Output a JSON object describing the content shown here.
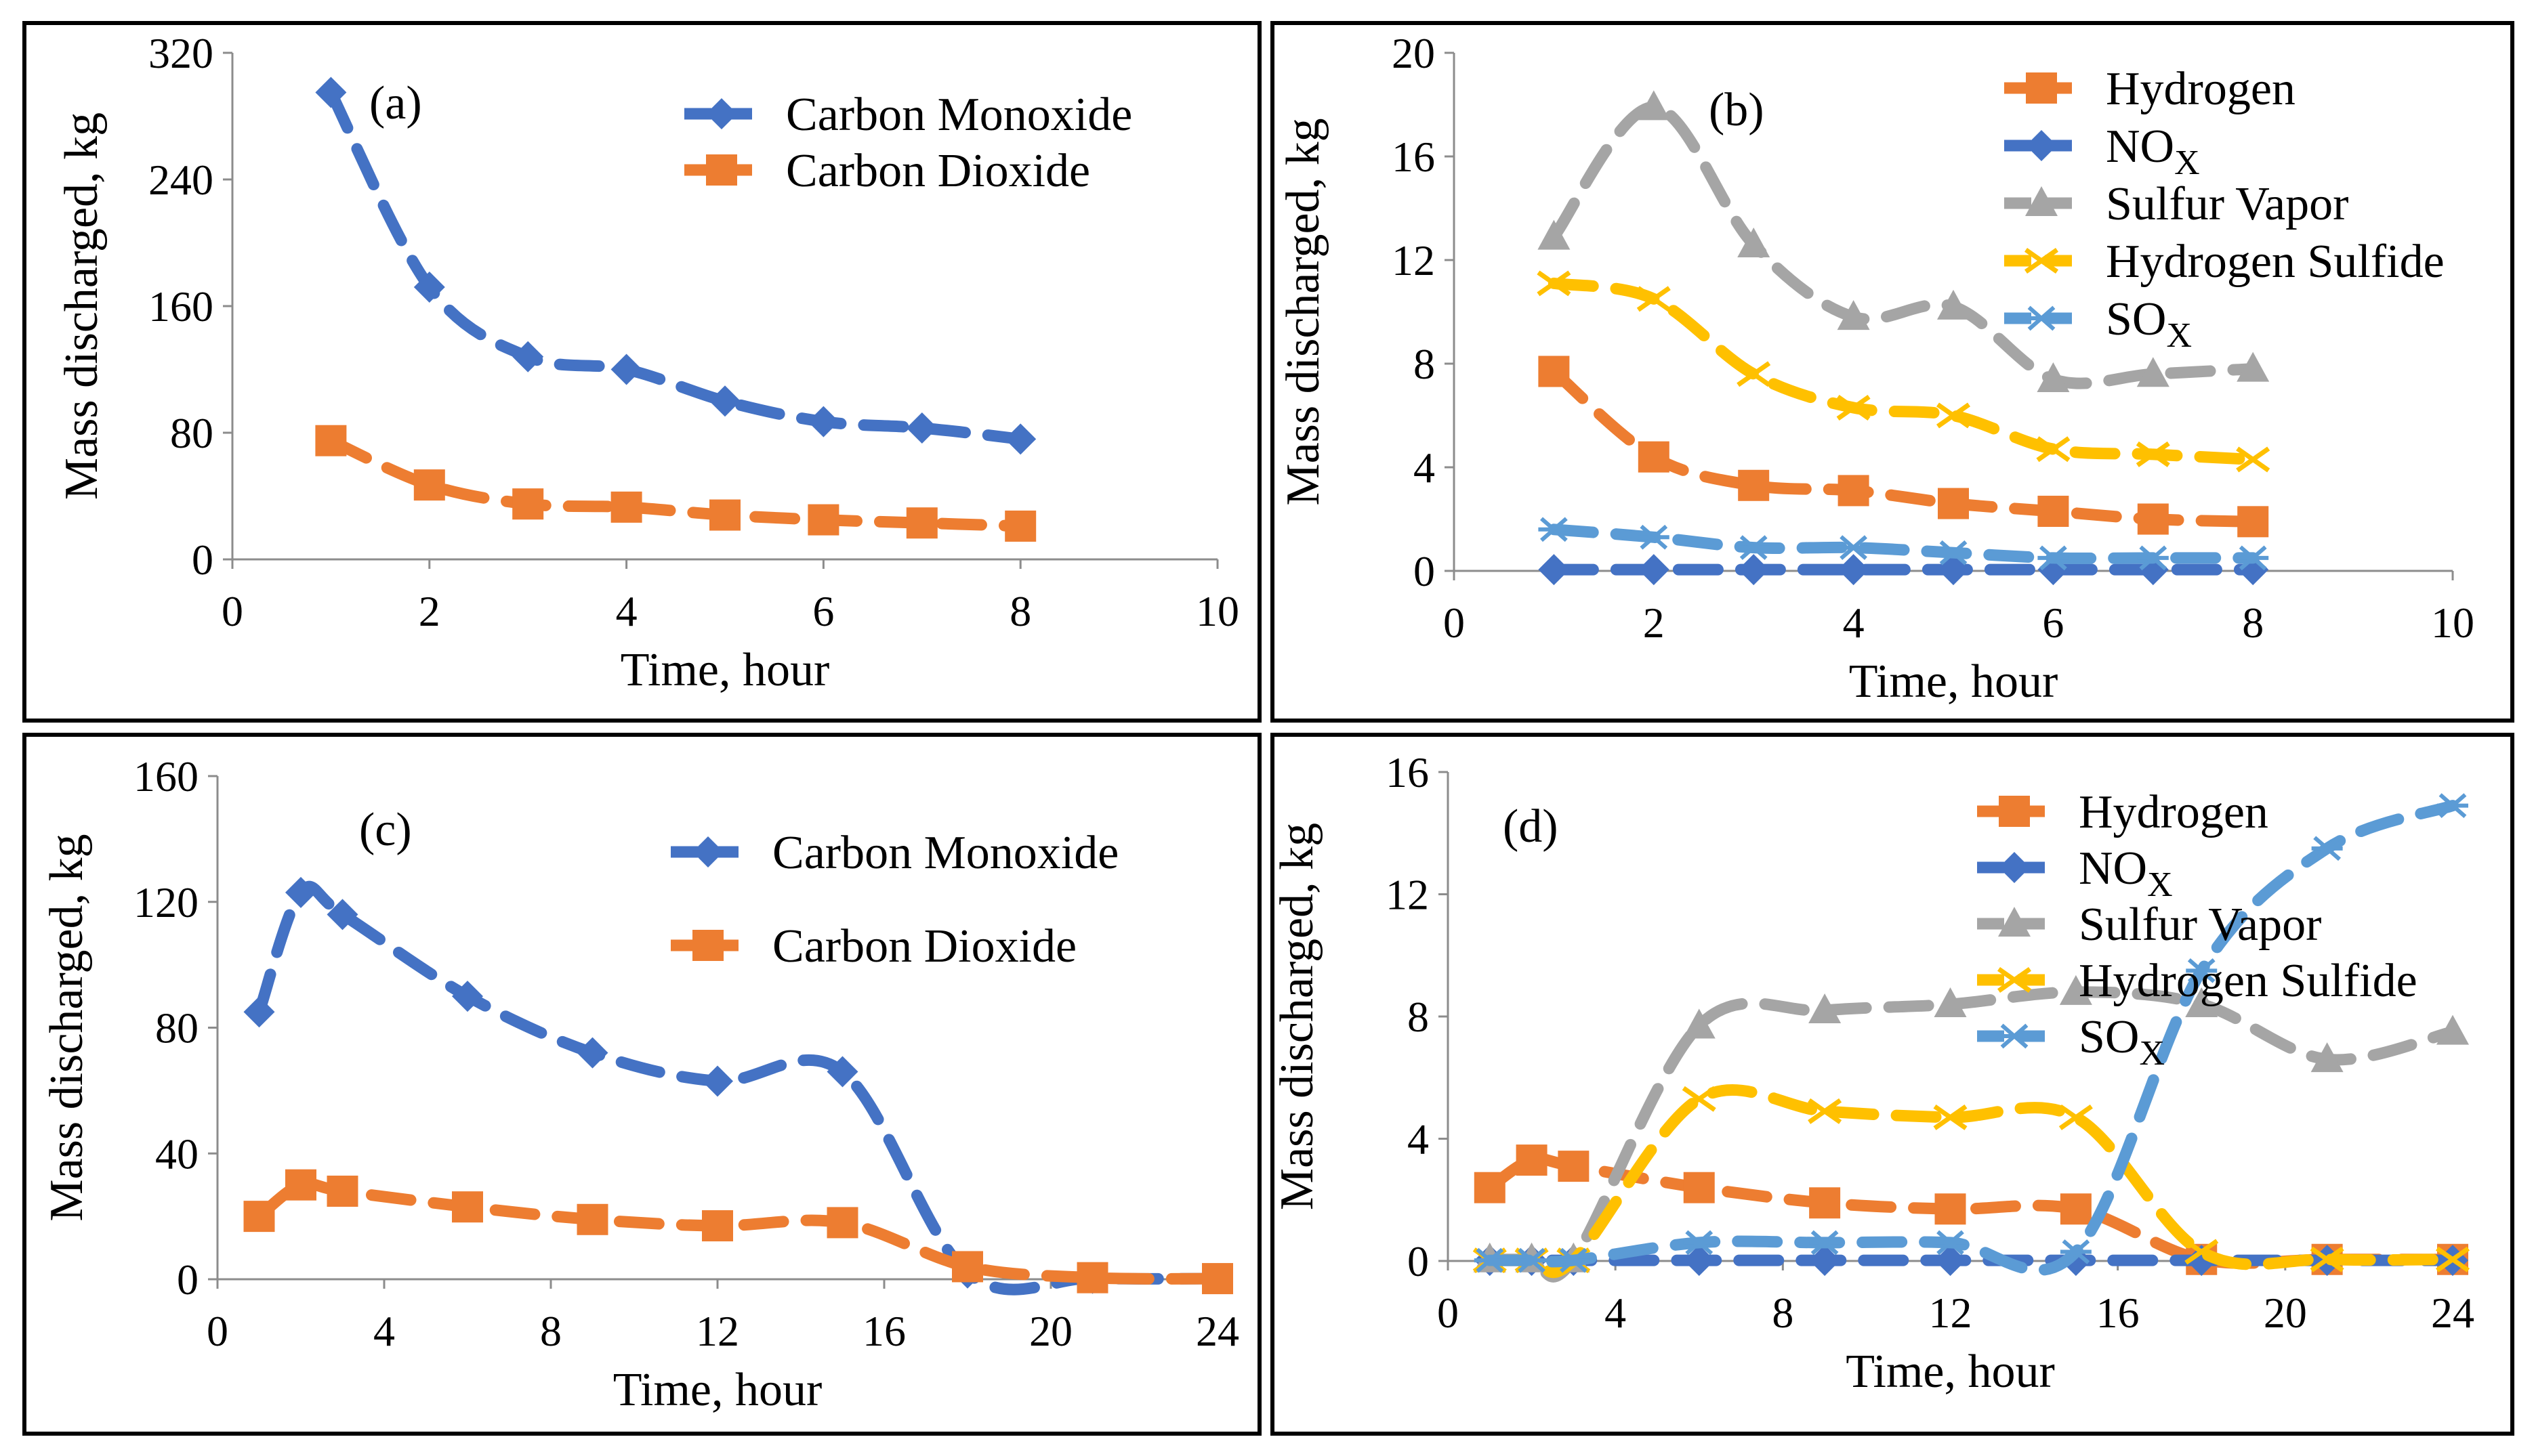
{
  "chart_data": [
    {
      "type": "line",
      "panel_label": "(a)",
      "xlabel": "Time, hour",
      "ylabel": "Mass discharged, kg",
      "xlim": [
        0,
        10
      ],
      "ylim": [
        0,
        320
      ],
      "xticks": [
        "0",
        "2",
        "4",
        "6",
        "8",
        "10"
      ],
      "yticks": [
        "0",
        "80",
        "160",
        "240",
        "320"
      ],
      "legend_position": "top-right",
      "series": [
        {
          "name": "Carbon Monoxide",
          "name_sub": "",
          "color": "#4472C4",
          "marker": "diamond",
          "x": [
            1,
            2,
            3,
            4,
            5,
            6,
            7,
            8
          ],
          "values": [
            295,
            172,
            128,
            120,
            100,
            87,
            83,
            76
          ]
        },
        {
          "name": "Carbon Dioxide",
          "name_sub": "",
          "color": "#ED7D31",
          "marker": "square",
          "x": [
            1,
            2,
            3,
            4,
            5,
            6,
            7,
            8
          ],
          "values": [
            75,
            47,
            35,
            33,
            28,
            25,
            23,
            21
          ]
        }
      ]
    },
    {
      "type": "line",
      "panel_label": "(b)",
      "xlabel": "Time, hour",
      "ylabel": "Mass discharged, kg",
      "xlim": [
        0,
        10
      ],
      "ylim": [
        0,
        20
      ],
      "xticks": [
        "0",
        "2",
        "4",
        "6",
        "8",
        "10"
      ],
      "yticks": [
        "0",
        "4",
        "8",
        "12",
        "16",
        "20"
      ],
      "legend_position": "top-right",
      "series": [
        {
          "name": "Hydrogen",
          "name_sub": "",
          "color": "#ED7D31",
          "marker": "square",
          "x": [
            1,
            2,
            3,
            4,
            5,
            6,
            7,
            8
          ],
          "values": [
            7.7,
            4.4,
            3.3,
            3.1,
            2.6,
            2.3,
            2.0,
            1.9
          ]
        },
        {
          "name": "NO",
          "name_sub": "X",
          "color": "#4472C4",
          "marker": "diamond",
          "x": [
            1,
            2,
            3,
            4,
            5,
            6,
            7,
            8
          ],
          "values": [
            0.05,
            0.05,
            0.05,
            0.05,
            0.05,
            0.05,
            0.05,
            0.05
          ]
        },
        {
          "name": "Sulfur Vapor",
          "name_sub": "",
          "color": "#A5A5A5",
          "marker": "triangle",
          "x": [
            1,
            2,
            3,
            4,
            5,
            6,
            7,
            8
          ],
          "values": [
            12.9,
            17.9,
            12.6,
            9.8,
            10.2,
            7.4,
            7.6,
            7.8
          ]
        },
        {
          "name": "Hydrogen Sulfide",
          "name_sub": "",
          "color": "#FFC000",
          "marker": "x",
          "x": [
            1,
            2,
            3,
            4,
            5,
            6,
            7,
            8
          ],
          "values": [
            11.1,
            10.5,
            7.6,
            6.3,
            6.0,
            4.7,
            4.5,
            4.3
          ]
        },
        {
          "name": "SO",
          "name_sub": "X",
          "color": "#5B9BD5",
          "marker": "star",
          "x": [
            1,
            2,
            3,
            4,
            5,
            6,
            7,
            8
          ],
          "values": [
            1.6,
            1.3,
            0.9,
            0.9,
            0.7,
            0.5,
            0.5,
            0.5
          ]
        }
      ]
    },
    {
      "type": "line",
      "panel_label": "(c)",
      "xlabel": "Time, hour",
      "ylabel": "Mass discharged, kg",
      "xlim": [
        0,
        24
      ],
      "ylim": [
        0,
        160
      ],
      "xticks": [
        "0",
        "4",
        "8",
        "12",
        "16",
        "20",
        "24"
      ],
      "yticks": [
        "0",
        "40",
        "80",
        "120",
        "160"
      ],
      "legend_position": "top-right",
      "series": [
        {
          "name": "Carbon Monoxide",
          "name_sub": "",
          "color": "#4472C4",
          "marker": "diamond",
          "x": [
            1,
            2,
            3,
            6,
            9,
            12,
            15,
            18,
            21,
            24
          ],
          "values": [
            85,
            123,
            116,
            90,
            72,
            63,
            66,
            2,
            0.3,
            0.2
          ]
        },
        {
          "name": "Carbon Dioxide",
          "name_sub": "",
          "color": "#ED7D31",
          "marker": "square",
          "x": [
            1,
            2,
            3,
            6,
            9,
            12,
            15,
            18,
            21,
            24
          ],
          "values": [
            20,
            30,
            28,
            23,
            19,
            17,
            18,
            4,
            0.5,
            0.2
          ]
        }
      ]
    },
    {
      "type": "line",
      "panel_label": "(d)",
      "xlabel": "Time, hour",
      "ylabel": "Mass discharged, kg",
      "xlim": [
        0,
        24
      ],
      "ylim": [
        0,
        16
      ],
      "xticks": [
        "0",
        "4",
        "8",
        "12",
        "16",
        "20",
        "24"
      ],
      "yticks": [
        "0",
        "4",
        "8",
        "12",
        "16"
      ],
      "legend_position": "top-right",
      "series": [
        {
          "name": "Hydrogen",
          "name_sub": "",
          "color": "#ED7D31",
          "marker": "square",
          "x": [
            1,
            2,
            3,
            6,
            9,
            12,
            15,
            18,
            21,
            24
          ],
          "values": [
            2.4,
            3.3,
            3.1,
            2.4,
            1.9,
            1.7,
            1.7,
            0.05,
            0.05,
            0.05
          ]
        },
        {
          "name": "NO",
          "name_sub": "X",
          "color": "#4472C4",
          "marker": "diamond",
          "x": [
            1,
            2,
            3,
            6,
            9,
            12,
            15,
            18,
            21,
            24
          ],
          "values": [
            0.02,
            0.02,
            0.02,
            0.02,
            0.02,
            0.02,
            0.02,
            0.02,
            0.02,
            0.02
          ]
        },
        {
          "name": "Sulfur Vapor",
          "name_sub": "",
          "color": "#A5A5A5",
          "marker": "triangle",
          "x": [
            1,
            2,
            3,
            6,
            9,
            12,
            15,
            18,
            21,
            24
          ],
          "values": [
            0.05,
            0.05,
            0.05,
            7.7,
            8.2,
            8.4,
            8.8,
            8.4,
            6.6,
            7.5
          ]
        },
        {
          "name": "Hydrogen Sulfide",
          "name_sub": "",
          "color": "#FFC000",
          "marker": "x",
          "x": [
            1,
            2,
            3,
            6,
            9,
            12,
            15,
            18,
            21,
            24
          ],
          "values": [
            0.02,
            0.02,
            0.02,
            5.3,
            4.9,
            4.7,
            4.7,
            0.3,
            0.05,
            0.05
          ]
        },
        {
          "name": "SO",
          "name_sub": "X",
          "color": "#5B9BD5",
          "marker": "star",
          "x": [
            1,
            2,
            3,
            6,
            9,
            12,
            15,
            18,
            21,
            24
          ],
          "values": [
            0.02,
            0.02,
            0.02,
            0.6,
            0.6,
            0.6,
            0.3,
            9.5,
            13.5,
            14.9
          ]
        }
      ]
    }
  ]
}
